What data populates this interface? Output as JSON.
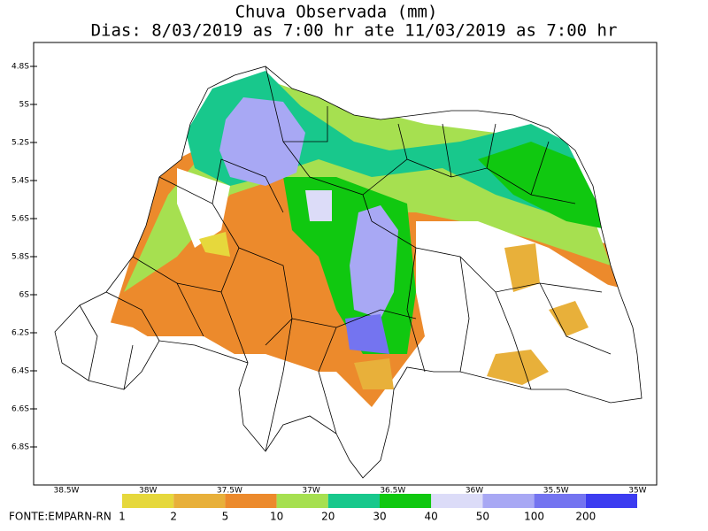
{
  "header": {
    "title": "Chuva Observada (mm)",
    "subtitle": "Dias: 8/03/2019 as 7:00 hr ate 11/03/2019 as 7:00 hr"
  },
  "map": {
    "lat_labels": [
      "4.8S",
      "5S",
      "5.2S",
      "5.4S",
      "5.6S",
      "5.8S",
      "6S",
      "6.2S",
      "6.4S",
      "6.6S",
      "6.8S"
    ],
    "lon_labels": [
      "38.5W",
      "38W",
      "37.5W",
      "37W",
      "36.5W",
      "36W",
      "35.5W",
      "35W"
    ]
  },
  "legend": {
    "labels": [
      "1",
      "2",
      "5",
      "10",
      "20",
      "30",
      "40",
      "50",
      "100",
      "200"
    ],
    "colors": [
      "#e6d83c",
      "#e8b03a",
      "#ec8a2c",
      "#a6e050",
      "#18c88c",
      "#10c810",
      "#dcdcf8",
      "#a8a8f4",
      "#7474f0",
      "#3c3cf0"
    ]
  },
  "source": "FONTE:EMPARN-RN"
}
